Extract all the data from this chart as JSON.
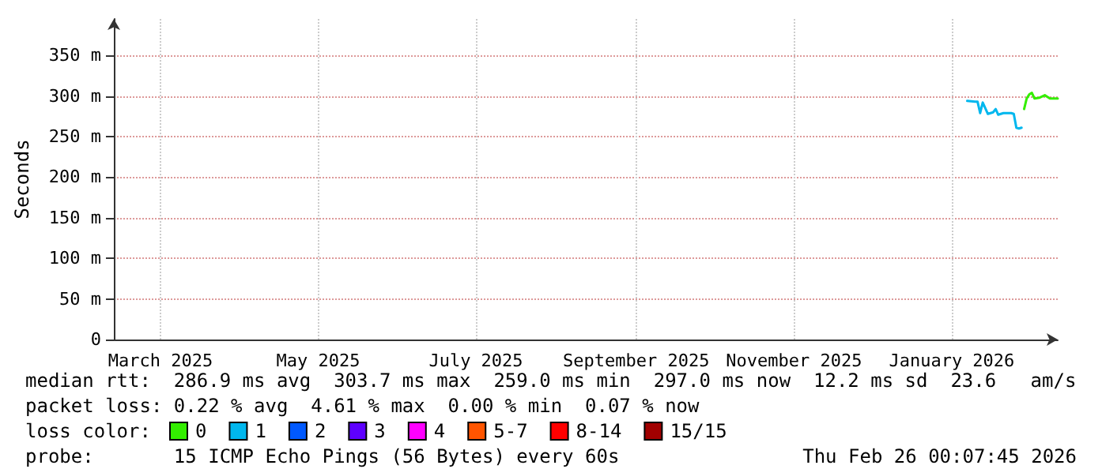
{
  "chart_data": {
    "type": "line",
    "ylabel": "Seconds",
    "xlim": [
      "2025-02-26",
      "2026-02-26"
    ],
    "xticks": [
      {
        "value": "2025-03-16",
        "label": "March 2025"
      },
      {
        "value": "2025-05-16",
        "label": "May 2025"
      },
      {
        "value": "2025-07-16",
        "label": "July 2025"
      },
      {
        "value": "2025-09-16",
        "label": "September 2025"
      },
      {
        "value": "2025-11-16",
        "label": "November 2025"
      },
      {
        "value": "2026-01-16",
        "label": "January 2026"
      }
    ],
    "ylim": [
      0,
      395
    ],
    "yticks": [
      0,
      {
        "value": 50,
        "label": "50 m"
      },
      {
        "value": 100,
        "label": "100 m"
      },
      {
        "value": 150,
        "label": "150 m"
      },
      {
        "value": 200,
        "label": "200 m"
      },
      {
        "value": 250,
        "label": "250 m"
      },
      {
        "value": 300,
        "label": "300 m"
      },
      {
        "value": 350,
        "label": "350 m"
      }
    ],
    "grid": true,
    "legend": "bottom",
    "legend_title": "loss color:",
    "marker": "none",
    "line_style": "solid",
    "series": [
      {
        "name": "0",
        "color": "#33ee00",
        "x": [
          "2026-02-13",
          "2026-02-14",
          "2026-02-15",
          "2026-02-16",
          "2026-02-17",
          "2026-02-19",
          "2026-02-21",
          "2026-02-23",
          "2026-02-26"
        ],
        "values": [
          284,
          297,
          302,
          304,
          297,
          298,
          301,
          297,
          297
        ]
      },
      {
        "name": "1",
        "color": "#00b7ee",
        "x": [
          "2026-01-22",
          "2026-01-25",
          "2026-01-26",
          "2026-01-27",
          "2026-01-28",
          "2026-01-29",
          "2026-01-30",
          "2026-02-01",
          "2026-02-02",
          "2026-02-03",
          "2026-02-05",
          "2026-02-08",
          "2026-02-09",
          "2026-02-10",
          "2026-02-11",
          "2026-02-12"
        ],
        "values": [
          294,
          293,
          293,
          279,
          292,
          285,
          278,
          280,
          284,
          277,
          279,
          279,
          278,
          261,
          260,
          261
        ]
      },
      {
        "name": "2",
        "color": "#0059ff"
      },
      {
        "name": "3",
        "color": "#5e00ff"
      },
      {
        "name": "4",
        "color": "#ff00ff"
      },
      {
        "name": "5-7",
        "color": "#ff5500"
      },
      {
        "name": "8-14",
        "color": "#ff0000"
      },
      {
        "name": "15/15",
        "color": "#a10000"
      }
    ],
    "annotations": [
      "median rtt:  286.9 ms avg  303.7 ms max  259.0 ms min  297.0 ms now  12.2 ms sd  23.6   am/s",
      "packet loss: 0.22 % avg  4.61 % max  0.00 % min  0.07 % now",
      "probe:       15 ICMP Echo Pings (56 Bytes) every 60s",
      "Thu Feb 26 00:07:45 2026"
    ]
  }
}
